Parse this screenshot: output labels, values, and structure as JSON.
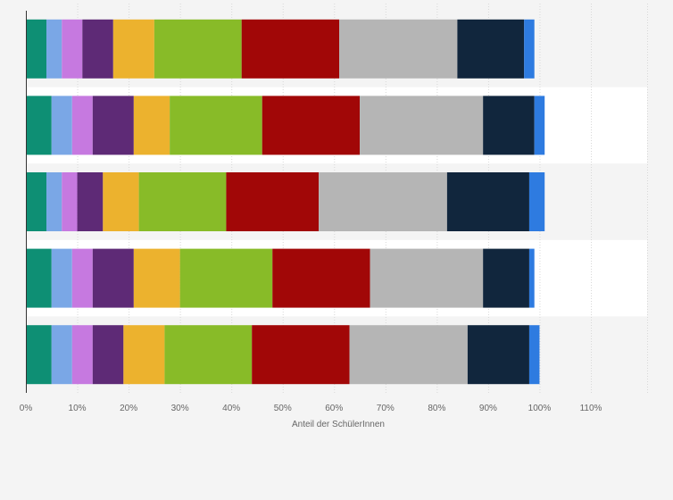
{
  "chart_data": {
    "type": "bar",
    "orientation": "horizontal",
    "stacked": true,
    "xlabel": "Anteil der SchülerInnen",
    "xlim": [
      0,
      120
    ],
    "xticks": [
      0,
      10,
      20,
      30,
      40,
      50,
      60,
      70,
      80,
      90,
      100,
      110
    ],
    "tick_labels": [
      "0%",
      "10%",
      "20%",
      "30%",
      "40%",
      "50%",
      "60%",
      "70%",
      "80%",
      "90%",
      "100%",
      "110%"
    ],
    "grid": true,
    "legend": "none",
    "categories": [
      "",
      "",
      "",
      "",
      ""
    ],
    "series": [
      {
        "color": "#0e8f74",
        "values": [
          4,
          5,
          4,
          5,
          5
        ]
      },
      {
        "color": "#7aa7e6",
        "values": [
          3,
          4,
          3,
          4,
          4
        ]
      },
      {
        "color": "#c679e0",
        "values": [
          4,
          4,
          3,
          4,
          4
        ]
      },
      {
        "color": "#5e2a76",
        "values": [
          6,
          8,
          5,
          8,
          6
        ]
      },
      {
        "color": "#ecb22e",
        "values": [
          8,
          7,
          7,
          9,
          8
        ]
      },
      {
        "color": "#88bb28",
        "values": [
          17,
          18,
          17,
          18,
          17
        ]
      },
      {
        "color": "#a10707",
        "values": [
          19,
          19,
          18,
          19,
          19
        ]
      },
      {
        "color": "#b5b5b5",
        "values": [
          23,
          24,
          25,
          22,
          23
        ]
      },
      {
        "color": "#11263d",
        "values": [
          13,
          10,
          16,
          9,
          12
        ]
      },
      {
        "color": "#2e7be0",
        "values": [
          2,
          2,
          3,
          1,
          2
        ]
      }
    ]
  }
}
